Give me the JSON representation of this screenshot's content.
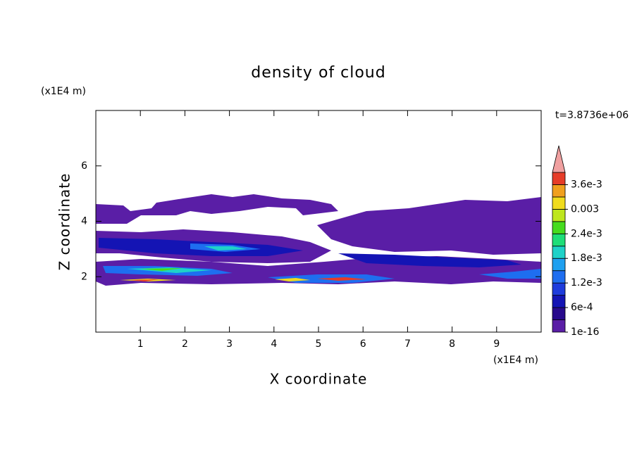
{
  "chart_data": {
    "type": "contour",
    "title": "density of cloud",
    "x_label": "X coordinate",
    "y_label": "Z coordinate",
    "x_unit": "(x1E4 m)",
    "y_unit": "(x1E4 m)",
    "time_label": "t=3.8736e+06",
    "xlim": [
      0,
      10
    ],
    "xticks": [
      1,
      2,
      3,
      4,
      5,
      6,
      7,
      8,
      9
    ],
    "ylim": [
      0,
      8
    ],
    "yticks": [
      2,
      4,
      6
    ],
    "colorbar": {
      "levels": [
        1e-16,
        0.0003,
        0.0006,
        0.0009,
        0.0012,
        0.0015,
        0.0018,
        0.0021,
        0.0024,
        0.0027,
        0.003,
        0.0033,
        0.0036
      ],
      "colors": [
        "#5a1ea6",
        "#280a8c",
        "#1414b4",
        "#1e3cdc",
        "#1e6ef0",
        "#1ea0f0",
        "#1ed2c8",
        "#1ede78",
        "#46dc1e",
        "#bee61e",
        "#f0dc1e",
        "#f0a01e",
        "#e63c28"
      ],
      "over_color": "#f0a0a0",
      "ticks": [
        1e-16,
        {
          "value": 0.0006,
          "label": "6e-4"
        },
        {
          "value": 0.0012,
          "label": "1.2e-3"
        },
        {
          "value": 0.0018,
          "label": "1.8e-3"
        },
        {
          "value": 0.0024,
          "label": "2.4e-3"
        },
        0.003,
        {
          "value": 0.0036,
          "label": "3.6e-3"
        }
      ]
    }
  }
}
